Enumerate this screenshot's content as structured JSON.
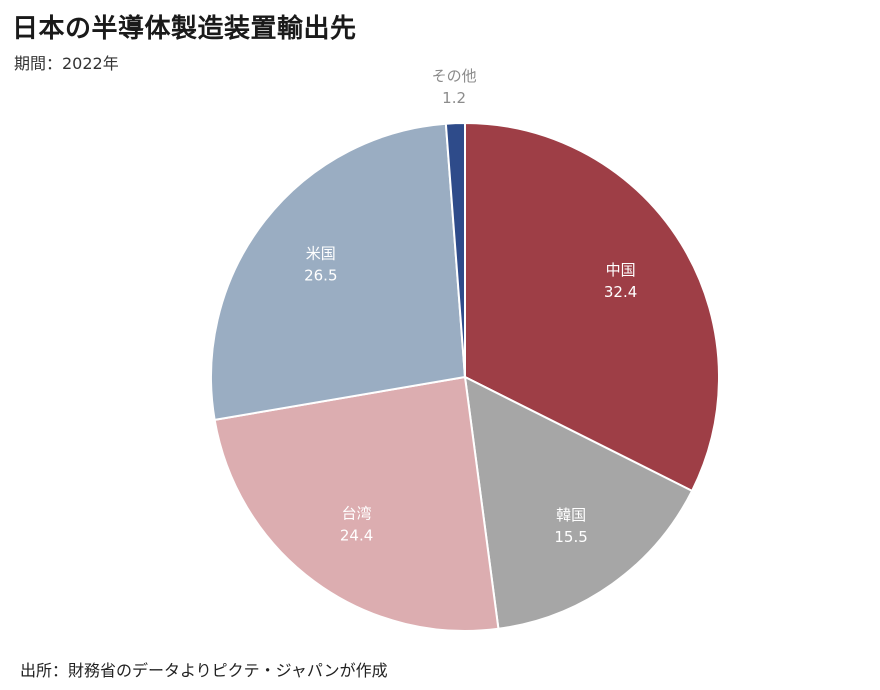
{
  "header": {
    "title": "日本の半導体製造装置輸出先",
    "period": "期間：2022年"
  },
  "footer": {
    "source": "出所：財務省のデータよりピクテ・ジャパンが作成"
  },
  "chart_data": {
    "type": "pie",
    "title": "日本の半導体製造装置輸出先",
    "subtitle": "期間：2022年",
    "start_angle_deg": 0,
    "direction": "clockwise",
    "categories": [
      "中国",
      "韓国",
      "台湾",
      "米国",
      "その他"
    ],
    "values": [
      32.4,
      15.5,
      24.4,
      26.5,
      1.2
    ],
    "colors": [
      "#9e3e46",
      "#a6a6a6",
      "#dcadb0",
      "#9aadc2",
      "#2e4b8a"
    ],
    "label_colors": [
      "#ffffff",
      "#ffffff",
      "#ffffff",
      "#ffffff",
      "#8c8c8c"
    ],
    "label_placement": [
      "inside",
      "inside",
      "inside",
      "inside",
      "outside"
    ]
  }
}
